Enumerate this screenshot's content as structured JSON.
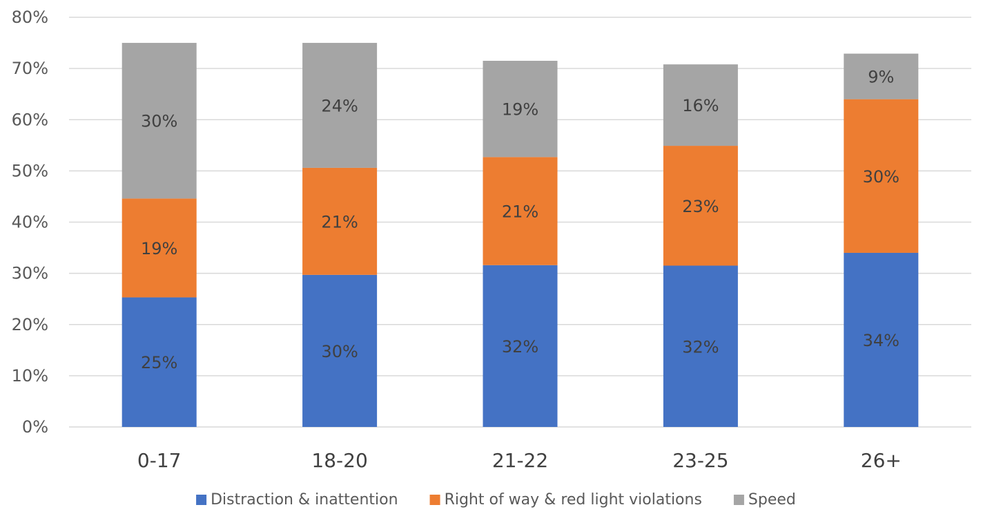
{
  "chart_data": {
    "type": "bar",
    "stacked": true,
    "categories": [
      "0-17",
      "18-20",
      "21-22",
      "23-25",
      "26+"
    ],
    "series": [
      {
        "name": "Distraction & inattention",
        "color": "#4472c4",
        "values": [
          25.3,
          29.7,
          31.6,
          31.5,
          34.0
        ],
        "labels": [
          "25%",
          "30%",
          "32%",
          "32%",
          "34%"
        ]
      },
      {
        "name": "Right of way & red light violations",
        "color": "#ed7d31",
        "values": [
          19.3,
          20.9,
          21.1,
          23.4,
          30.0
        ],
        "labels": [
          "19%",
          "21%",
          "21%",
          "23%",
          "30%"
        ]
      },
      {
        "name": "Speed",
        "color": "#a5a5a5",
        "values": [
          30.4,
          24.4,
          18.8,
          15.9,
          8.9
        ],
        "labels": [
          "30%",
          "24%",
          "19%",
          "16%",
          "9%"
        ]
      }
    ],
    "ylim": [
      0,
      80
    ],
    "yticks": [
      0,
      10,
      20,
      30,
      40,
      50,
      60,
      70,
      80
    ],
    "ytick_labels": [
      "0%",
      "10%",
      "20%",
      "30%",
      "40%",
      "50%",
      "60%",
      "70%",
      "80%"
    ],
    "grid": true,
    "legend": "bottom"
  }
}
